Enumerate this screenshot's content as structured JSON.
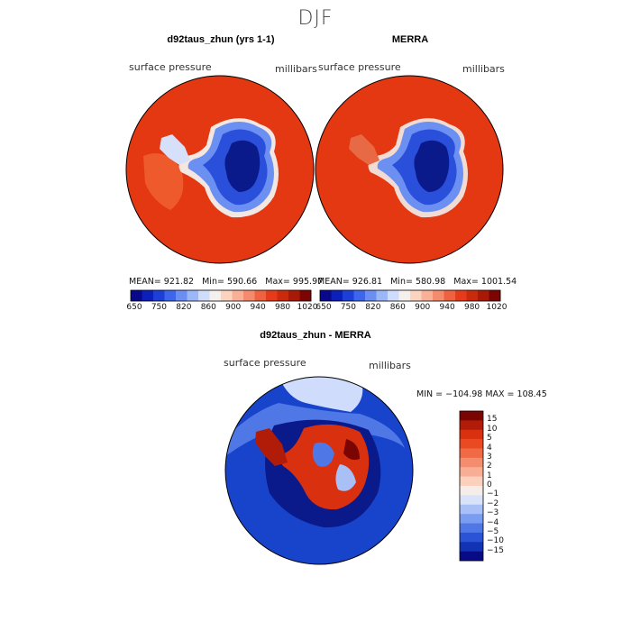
{
  "season_title": "DJF",
  "panels": [
    {
      "title": "d92taus_zhun (yrs 1-1)",
      "variable": "surface pressure",
      "units": "millibars",
      "stats": {
        "mean": "921.82",
        "min": "590.66",
        "max": "995.97"
      }
    },
    {
      "title": "MERRA",
      "variable": "surface pressure",
      "units": "millibars",
      "stats": {
        "mean": "926.81",
        "min": "580.98",
        "max": "1001.54"
      }
    }
  ],
  "stat_labels": {
    "mean": "MEAN=",
    "min": "Min=",
    "max": "Max="
  },
  "abs_colorbar": {
    "tick_labels": [
      "650",
      "750",
      "820",
      "860",
      "900",
      "940",
      "980",
      "1020"
    ],
    "colors": [
      "#08088a",
      "#0c1fb8",
      "#1d3fd8",
      "#3d66ea",
      "#6a8ef2",
      "#9cb7f7",
      "#cfdcfb",
      "#f6f0ec",
      "#fbd3bf",
      "#f8b097",
      "#f48a6e",
      "#ee6240",
      "#e63b1a",
      "#c92a0c",
      "#a81a06",
      "#7a0503"
    ]
  },
  "diff_panel": {
    "title": "d92taus_zhun - MERRA",
    "variable": "surface pressure",
    "units": "millibars",
    "minmax_text": "MIN = −104.98 MAX = 108.45"
  },
  "diff_colorbar": {
    "tick_labels": [
      "15",
      "10",
      "5",
      "4",
      "3",
      "2",
      "1",
      "0",
      "−1",
      "−2",
      "−3",
      "−4",
      "−5",
      "−10",
      "−15"
    ],
    "colors": [
      "#7a0503",
      "#b01c07",
      "#d9300f",
      "#ea4a22",
      "#f06a46",
      "#f48c6d",
      "#f8ae94",
      "#fbd0bc",
      "#f7ede8",
      "#d8e3fa",
      "#a8c0f6",
      "#7b9df1",
      "#4f78e6",
      "#2a53d6",
      "#1233b4",
      "#080a86"
    ]
  },
  "map_colors": {
    "ocean_high": "#e23a13",
    "ocean_diff": "#1844cc",
    "ice_low": "#0a1a8a"
  }
}
